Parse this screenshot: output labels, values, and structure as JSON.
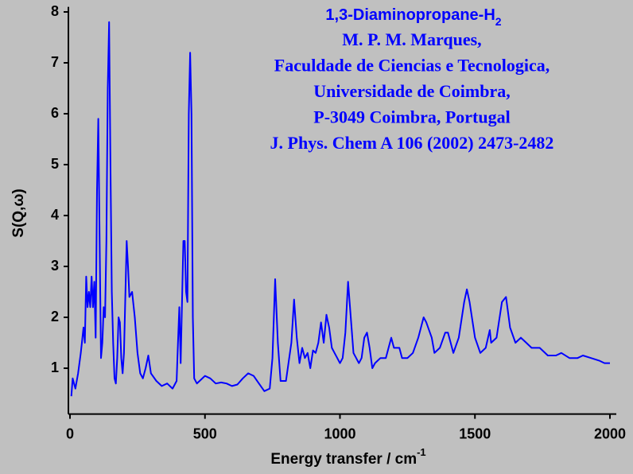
{
  "chart_data": {
    "type": "line",
    "title": "1,3-Diaminopropane-H",
    "title_subscript": "2",
    "annotations": [
      "M. P. M. Marques,",
      "Faculdade de Ciencias e Tecnologica,",
      "Universidade de Coimbra,",
      "P-3049 Coimbra, Portugal",
      "J. Phys. Chem A 106 (2002) 2473-2482"
    ],
    "x_label": "Energy transfer / cm",
    "x_label_superscript": "-1",
    "y_label": "S(Q,ω)",
    "x": [
      5,
      10,
      20,
      30,
      40,
      50,
      55,
      60,
      65,
      70,
      75,
      80,
      85,
      90,
      95,
      100,
      105,
      110,
      115,
      120,
      125,
      130,
      135,
      140,
      145,
      150,
      155,
      160,
      165,
      170,
      175,
      180,
      185,
      190,
      195,
      200,
      210,
      215,
      220,
      230,
      240,
      250,
      260,
      270,
      280,
      290,
      300,
      320,
      340,
      360,
      380,
      395,
      400,
      405,
      410,
      420,
      425,
      430,
      435,
      440,
      445,
      450,
      455,
      460,
      470,
      480,
      500,
      520,
      540,
      560,
      580,
      600,
      620,
      640,
      660,
      680,
      700,
      720,
      740,
      750,
      760,
      770,
      780,
      800,
      820,
      830,
      840,
      850,
      860,
      870,
      880,
      890,
      900,
      910,
      920,
      930,
      940,
      950,
      960,
      970,
      980,
      990,
      1000,
      1010,
      1020,
      1030,
      1040,
      1050,
      1060,
      1070,
      1080,
      1090,
      1100,
      1110,
      1120,
      1130,
      1150,
      1170,
      1190,
      1200,
      1220,
      1230,
      1250,
      1270,
      1290,
      1310,
      1320,
      1340,
      1350,
      1370,
      1390,
      1400,
      1410,
      1420,
      1440,
      1460,
      1470,
      1480,
      1500,
      1520,
      1540,
      1555,
      1560,
      1580,
      1600,
      1615,
      1630,
      1650,
      1670,
      1690,
      1710,
      1740,
      1770,
      1800,
      1820,
      1850,
      1880,
      1900,
      1930,
      1960,
      1980,
      2000
    ],
    "series": [
      {
        "color": "#0000ff",
        "values": [
          0.45,
          0.8,
          0.6,
          0.9,
          1.3,
          1.8,
          1.5,
          2.8,
          2.2,
          2.5,
          2.2,
          2.8,
          2.2,
          2.7,
          1.6,
          4.5,
          5.9,
          3.5,
          1.2,
          1.5,
          2.2,
          2.0,
          3.5,
          6.5,
          7.8,
          5.0,
          2.5,
          1.5,
          0.8,
          0.7,
          1.2,
          2.0,
          1.9,
          1.2,
          0.9,
          1.3,
          3.5,
          3.0,
          2.4,
          2.5,
          2.0,
          1.3,
          0.9,
          0.8,
          1.0,
          1.25,
          0.9,
          0.75,
          0.65,
          0.7,
          0.6,
          0.75,
          1.5,
          2.2,
          1.1,
          3.5,
          3.5,
          2.5,
          2.3,
          6.0,
          7.2,
          6.0,
          2.0,
          0.8,
          0.7,
          0.75,
          0.85,
          0.8,
          0.7,
          0.72,
          0.7,
          0.65,
          0.68,
          0.8,
          0.9,
          0.85,
          0.7,
          0.55,
          0.6,
          1.2,
          2.75,
          1.5,
          0.75,
          0.75,
          1.5,
          2.35,
          1.6,
          1.1,
          1.4,
          1.2,
          1.3,
          1.0,
          1.35,
          1.3,
          1.5,
          1.9,
          1.5,
          2.05,
          1.8,
          1.4,
          1.3,
          1.2,
          1.1,
          1.2,
          1.7,
          2.7,
          2.0,
          1.3,
          1.2,
          1.1,
          1.2,
          1.6,
          1.7,
          1.4,
          1.0,
          1.1,
          1.2,
          1.2,
          1.6,
          1.4,
          1.4,
          1.2,
          1.2,
          1.3,
          1.6,
          2.0,
          1.9,
          1.6,
          1.3,
          1.4,
          1.7,
          1.7,
          1.5,
          1.3,
          1.6,
          2.3,
          2.55,
          2.3,
          1.6,
          1.3,
          1.4,
          1.75,
          1.5,
          1.6,
          2.3,
          2.4,
          1.8,
          1.5,
          1.6,
          1.5,
          1.4,
          1.4,
          1.25,
          1.25,
          1.3,
          1.2,
          1.2,
          1.25,
          1.2,
          1.15,
          1.1,
          1.1
        ]
      }
    ],
    "xlim": [
      0,
      2000
    ],
    "xticks": [
      0,
      500,
      1000,
      1500,
      2000
    ],
    "ylim": [
      0.1,
      8.1
    ],
    "yticks": [
      1,
      2,
      3,
      4,
      5,
      6,
      7,
      8
    ]
  }
}
